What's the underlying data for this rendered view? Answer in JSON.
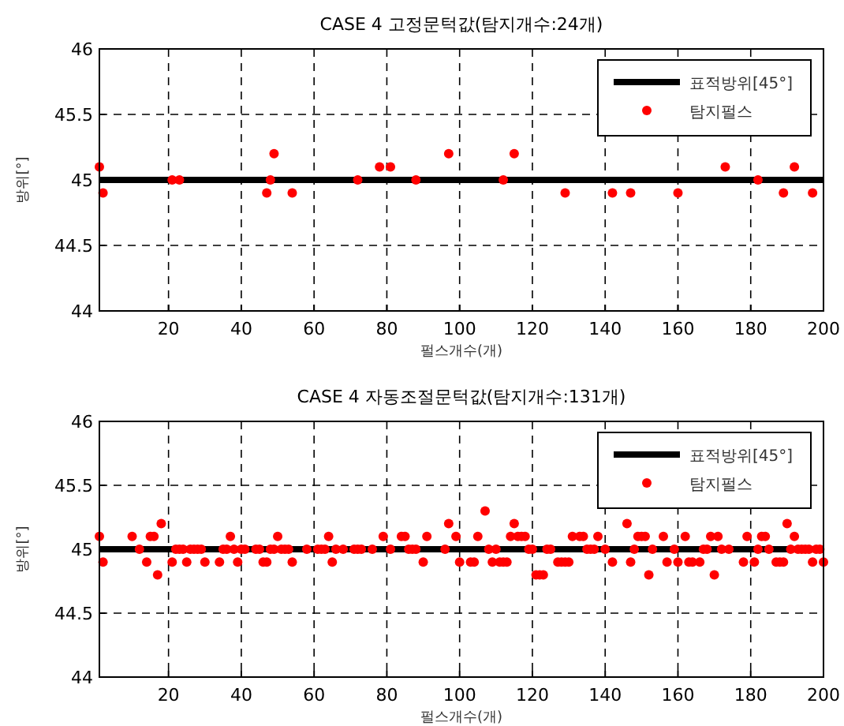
{
  "chart_data": [
    {
      "type": "scatter",
      "title": "CASE 4 고정문턱값(탐지개수:24개)",
      "xlabel": "펄스개수(개)",
      "ylabel": "방위[°]",
      "xlim": [
        1,
        200
      ],
      "xticks": [
        20,
        40,
        60,
        80,
        100,
        120,
        140,
        160,
        180,
        200
      ],
      "ylim": [
        44,
        46
      ],
      "yticks": [
        44,
        44.5,
        45,
        45.5,
        46
      ],
      "grid": true,
      "legend": "top right",
      "series": [
        {
          "name": "표적방위[45°]",
          "type": "line",
          "marker": "none",
          "color": "#000000",
          "x": [
            1,
            200
          ],
          "values": [
            45,
            45
          ]
        },
        {
          "name": "탐지펄스",
          "marker": "circle",
          "color": "#ff0000",
          "x": [
            1,
            2,
            21,
            23,
            47,
            48,
            49,
            54,
            72,
            78,
            81,
            88,
            97,
            112,
            115,
            129,
            142,
            147,
            160,
            173,
            182,
            189,
            192,
            197
          ],
          "values": [
            45.1,
            44.9,
            45,
            45,
            44.9,
            45,
            45.2,
            44.9,
            45,
            45.1,
            45.1,
            45,
            45.2,
            45,
            45.2,
            44.9,
            44.9,
            44.9,
            44.9,
            45.1,
            45,
            44.9,
            45.1,
            44.9
          ]
        }
      ]
    },
    {
      "type": "scatter",
      "title": "CASE 4 자동조절문턱값(탐지개수:131개)",
      "xlabel": "펄스개수(개)",
      "ylabel": "방위[°]",
      "xlim": [
        1,
        200
      ],
      "xticks": [
        20,
        40,
        60,
        80,
        100,
        120,
        140,
        160,
        180,
        200
      ],
      "ylim": [
        44,
        46
      ],
      "yticks": [
        44,
        44.5,
        45,
        45.5,
        46
      ],
      "grid": true,
      "legend": "top right",
      "series": [
        {
          "name": "표적방위[45°]",
          "type": "line",
          "marker": "none",
          "color": "#000000",
          "x": [
            1,
            200
          ],
          "values": [
            45,
            45
          ]
        },
        {
          "name": "탐지펄스",
          "marker": "circle",
          "color": "#ff0000",
          "x": [
            1,
            2,
            10,
            12,
            14,
            15,
            16,
            17,
            18,
            21,
            22,
            23,
            24,
            25,
            26,
            27,
            28,
            29,
            30,
            34,
            35,
            36,
            37,
            38,
            39,
            40,
            41,
            44,
            45,
            46,
            47,
            48,
            49,
            50,
            51,
            52,
            53,
            54,
            58,
            61,
            62,
            63,
            64,
            65,
            66,
            68,
            71,
            72,
            73,
            76,
            79,
            81,
            84,
            85,
            86,
            87,
            88,
            90,
            91,
            96,
            97,
            99,
            100,
            103,
            104,
            105,
            107,
            108,
            109,
            110,
            111,
            112,
            113,
            114,
            115,
            116,
            117,
            118,
            119,
            120,
            121,
            122,
            123,
            124,
            125,
            127,
            128,
            129,
            130,
            131,
            133,
            134,
            135,
            136,
            137,
            138,
            140,
            142,
            146,
            147,
            148,
            149,
            150,
            151,
            152,
            153,
            156,
            157,
            159,
            160,
            162,
            163,
            164,
            166,
            167,
            168,
            169,
            170,
            171,
            172,
            174,
            178,
            179,
            181,
            182,
            183,
            184,
            185,
            187,
            188,
            189,
            190,
            191,
            192,
            193,
            194,
            195,
            196,
            197,
            198,
            199,
            200
          ],
          "values": [
            45.1,
            44.9,
            45.1,
            45,
            44.9,
            45.1,
            45.1,
            44.8,
            45.2,
            44.9,
            45,
            45,
            45,
            44.9,
            45,
            45,
            45,
            45,
            44.9,
            44.9,
            45,
            45,
            45.1,
            45,
            44.9,
            45,
            45,
            45,
            45,
            44.9,
            44.9,
            45,
            45,
            45.1,
            45,
            45,
            45,
            44.9,
            45,
            45,
            45,
            45,
            45.1,
            44.9,
            45,
            45,
            45,
            45,
            45,
            45,
            45.1,
            45,
            45.1,
            45.1,
            45,
            45,
            45,
            44.9,
            45.1,
            45,
            45.2,
            45.1,
            44.9,
            44.9,
            44.9,
            45.1,
            45.3,
            45,
            44.9,
            45,
            44.9,
            44.9,
            44.9,
            45.1,
            45.2,
            45.1,
            45.1,
            45.1,
            45,
            45,
            44.8,
            44.8,
            44.8,
            45,
            45,
            44.9,
            44.9,
            44.9,
            44.9,
            45.1,
            45.1,
            45.1,
            45,
            45,
            45,
            45.1,
            45,
            44.9,
            45.2,
            44.9,
            45,
            45.1,
            45.1,
            45.1,
            44.8,
            45,
            45.1,
            44.9,
            45,
            44.9,
            45.1,
            44.9,
            44.9,
            44.9,
            45,
            45,
            45.1,
            44.8,
            45.1,
            45,
            45,
            44.9,
            45.1,
            44.9,
            45,
            45.1,
            45.1,
            45,
            44.9,
            44.9,
            44.9,
            45.2,
            45,
            45.1,
            45,
            45,
            45,
            45,
            44.9,
            45,
            45,
            44.9
          ]
        }
      ]
    }
  ]
}
